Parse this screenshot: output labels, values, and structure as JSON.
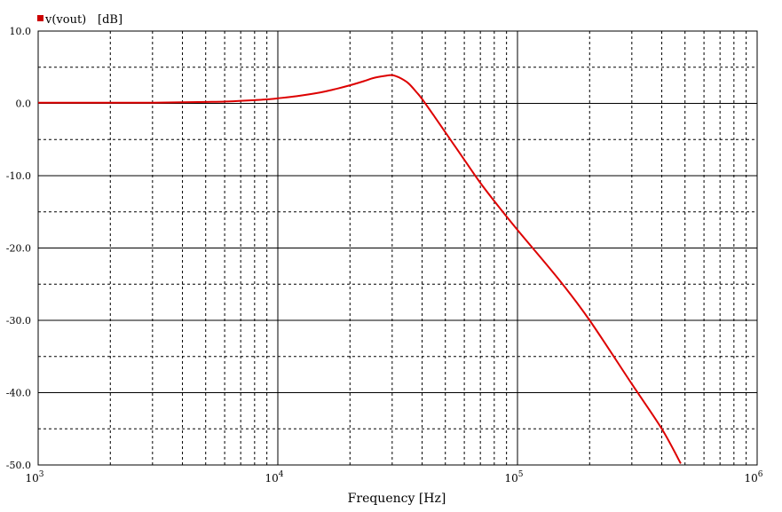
{
  "chart_data": {
    "type": "line",
    "xlabel": "Frequency [Hz]",
    "x_scale": "log",
    "xlim": [
      1000,
      1000000
    ],
    "ylim": [
      -50,
      10
    ],
    "y_ticks": [
      10,
      0,
      -10,
      -20,
      -30,
      -40,
      -50
    ],
    "y_tick_labels": [
      "10.0",
      "0.0",
      "-10.0",
      "-20.0",
      "-30.0",
      "-40.0",
      "-50.0"
    ],
    "x_major_ticks": [
      {
        "value": 1000,
        "base": "10",
        "exp": "3"
      },
      {
        "value": 10000,
        "base": "10",
        "exp": "4"
      },
      {
        "value": 100000,
        "base": "10",
        "exp": "5"
      },
      {
        "value": 1000000,
        "base": "10",
        "exp": "6"
      }
    ],
    "y_minor_grid_step": 5,
    "grid": true,
    "legend": {
      "position": "top-left",
      "marker_color": "#cc0000",
      "entries": [
        {
          "name": "v(vout)",
          "unit": "[dB]"
        }
      ]
    },
    "series": [
      {
        "name": "v(vout)",
        "color": "#dd0000",
        "x": [
          1000,
          2000,
          3000,
          4000,
          5000,
          6000,
          7000,
          8000,
          9000,
          10000,
          12000,
          15000,
          17000,
          20000,
          23000,
          25000,
          28000,
          30000,
          32000,
          35000,
          38000,
          40000,
          45000,
          50000,
          60000,
          70000,
          80000,
          100000,
          150000,
          200000,
          300000,
          400000,
          480000
        ],
        "y": [
          0.1,
          0.1,
          0.1,
          0.15,
          0.2,
          0.25,
          0.35,
          0.45,
          0.55,
          0.7,
          1.0,
          1.5,
          1.9,
          2.5,
          3.1,
          3.5,
          3.8,
          3.9,
          3.6,
          2.8,
          1.5,
          0.6,
          -1.8,
          -4.0,
          -7.8,
          -11.0,
          -13.5,
          -17.5,
          -24.5,
          -30.0,
          -38.8,
          -45.0,
          -49.8
        ]
      }
    ]
  }
}
